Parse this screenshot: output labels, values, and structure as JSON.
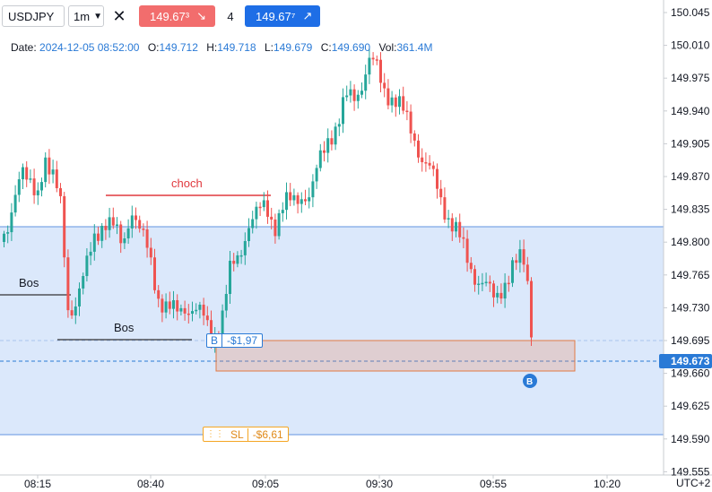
{
  "toolbar": {
    "symbol": "USDJPY",
    "timeframe": "1m",
    "sell_price": "149.67³",
    "quantity": "4",
    "buy_price": "149.67⁷"
  },
  "ohlc": {
    "date_label": "Date:",
    "date": "2024-12-05 08:52:00",
    "open_label": "O:",
    "open": "149.712",
    "high_label": "H:",
    "high": "149.718",
    "low_label": "L:",
    "low": "149.679",
    "close_label": "C:",
    "close": "149.690",
    "vol_label": "Vol:",
    "vol": "361.4M"
  },
  "annotations": {
    "choch": "choch",
    "bos1": "Bos",
    "bos2": "Bos"
  },
  "orders": {
    "buy_tag": "B",
    "buy_pnl": "-$1,97",
    "sl_tag": "SL",
    "sl_pnl": "-$6,61",
    "fill_marker": "B"
  },
  "price_axis": {
    "ticks": [
      "150.045",
      "150.010",
      "149.975",
      "149.940",
      "149.905",
      "149.870",
      "149.835",
      "149.800",
      "149.765",
      "149.730",
      "149.695",
      "149.660",
      "149.625",
      "149.590",
      "149.555"
    ],
    "current": "149.673"
  },
  "time_axis": {
    "ticks": [
      "08:15",
      "08:40",
      "09:05",
      "09:30",
      "09:55",
      "10:20"
    ],
    "timezone": "UTC+2"
  },
  "colors": {
    "up": "#26a69a",
    "down": "#ef5350",
    "accent": "#1e6ee6",
    "zone": "#dbe8fb",
    "sl": "#f5a623"
  }
}
